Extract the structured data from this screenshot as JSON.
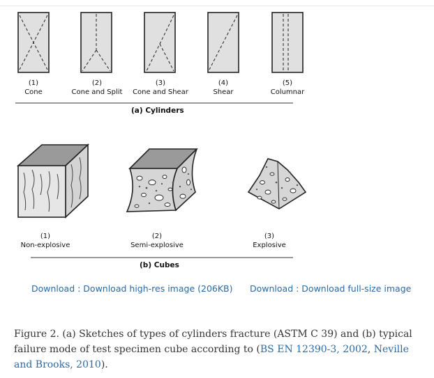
{
  "cylinders": {
    "items": [
      {
        "num": "(1)",
        "name": "Cone"
      },
      {
        "num": "(2)",
        "name": "Cone and Split"
      },
      {
        "num": "(3)",
        "name": "Cone and Shear"
      },
      {
        "num": "(4)",
        "name": "Shear"
      },
      {
        "num": "(5)",
        "name": "Columnar"
      }
    ],
    "heading": "(a)  Cylinders"
  },
  "cubes": {
    "items": [
      {
        "num": "(1)",
        "name": "Non-explosive"
      },
      {
        "num": "(2)",
        "name": "Semi-explosive"
      },
      {
        "num": "(3)",
        "name": "Explosive"
      }
    ],
    "heading": "(b)  Cubes"
  },
  "downloads": {
    "high_res": "Download : Download high-res image (206KB)",
    "full_size": "Download : Download full-size image"
  },
  "caption": {
    "text_before": "Figure 2. (a) Sketches of types of cylinders fracture (ASTM C 39) and (b) typical failure mode of test specimen cube according to (",
    "ref1": "BS EN 12390-3, 2002",
    "sep": ", ",
    "ref2": "Neville and Brooks, 2010",
    "text_after": ")."
  },
  "colors": {
    "link": "#2a6aa5",
    "specimen_fill": "#e0e0e0",
    "cube_top": "#9a9a9a"
  }
}
